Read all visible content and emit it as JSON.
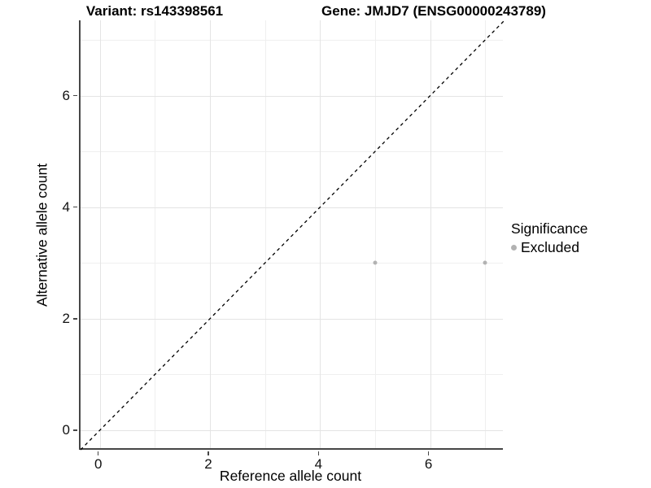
{
  "chart_data": {
    "type": "scatter",
    "title_left": "Variant: rs143398561",
    "title_right": "Gene: JMJD7 (ENSG00000243789)",
    "xlabel": "Reference allele count",
    "ylabel": "Alternative allele count",
    "xlim": [
      -0.35,
      7.35
    ],
    "ylim": [
      -0.35,
      7.35
    ],
    "x_major_ticks": [
      0,
      2,
      4,
      6
    ],
    "y_major_ticks": [
      0,
      2,
      4,
      6
    ],
    "x_minor_ticks": [
      1,
      3,
      5,
      7
    ],
    "y_minor_ticks": [
      1,
      3,
      5,
      7
    ],
    "grid": true,
    "series": [
      {
        "name": "Excluded",
        "color": "#b2b2b2",
        "points": [
          {
            "x": 5,
            "y": 3
          },
          {
            "x": 7,
            "y": 3
          }
        ]
      }
    ],
    "reference_line": {
      "slope": 1,
      "intercept": 0,
      "style": "dashed",
      "color": "#000000"
    },
    "legend": {
      "title": "Significance",
      "position": "right",
      "items": [
        {
          "label": "Excluded",
          "color": "#b2b2b2"
        }
      ]
    },
    "colors": {
      "axis_line": "#464646",
      "grid_major": "#e4e4e4",
      "grid_minor": "#efefef",
      "tick_text": "#111111"
    }
  }
}
